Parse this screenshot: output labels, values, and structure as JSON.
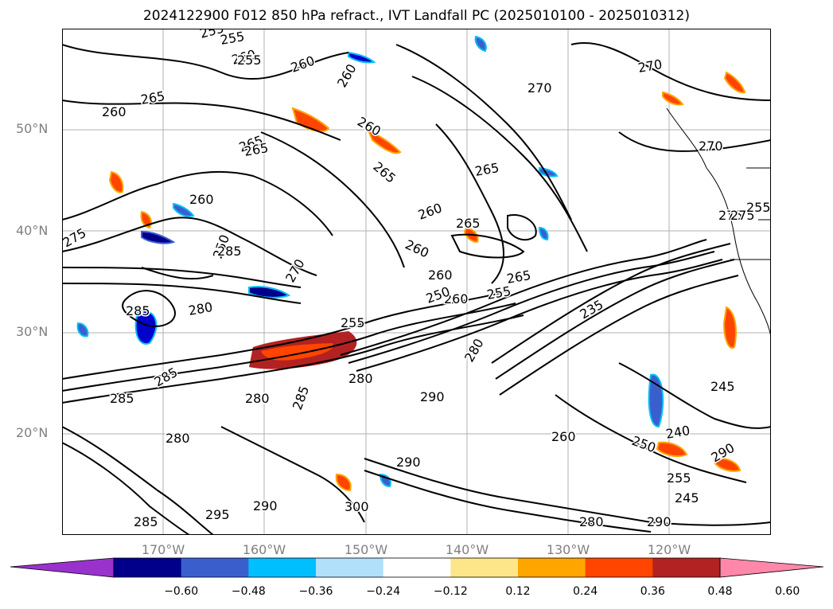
{
  "title": "2024122900 F012 850 hPa refract., IVT Landfall PC (2025010100 - 2025010312)",
  "map": {
    "lat_labels": [
      "50°N",
      "40°N",
      "30°N",
      "20°N"
    ],
    "lon_labels": [
      "170°W",
      "160°W",
      "150°W",
      "140°W",
      "130°W",
      "120°W"
    ],
    "contour_labels": [
      "255",
      "255",
      "260",
      "265",
      "260",
      "265",
      "265",
      "260",
      "260",
      "265",
      "260",
      "270",
      "260",
      "250",
      "255",
      "260",
      "265",
      "275",
      "270",
      "260",
      "260",
      "265",
      "260",
      "250",
      "255",
      "265",
      "255",
      "285",
      "280",
      "285",
      "280",
      "235",
      "245",
      "240",
      "250",
      "260",
      "255",
      "285",
      "280",
      "290",
      "285",
      "280",
      "290",
      "280",
      "285",
      "290",
      "270",
      "270",
      "275",
      "275",
      "255",
      "245",
      "295",
      "290",
      "300",
      "290",
      "280",
      "285"
    ],
    "axis_color": "#000000",
    "grid_color": "#b0b0b0",
    "label_color": "#808080"
  },
  "colorbar": {
    "ticks": [
      "−0.60",
      "−0.48",
      "−0.36",
      "−0.24",
      "−0.12",
      "0.12",
      "0.24",
      "0.36",
      "0.48",
      "0.60"
    ],
    "colors": [
      "#9932cc",
      "#00008b",
      "#3a5fcd",
      "#00bfff",
      "#b0e0fa",
      "#ffffff",
      "#fde68a",
      "#ffa500",
      "#ff4500",
      "#b22222",
      "#ff88aa"
    ]
  }
}
